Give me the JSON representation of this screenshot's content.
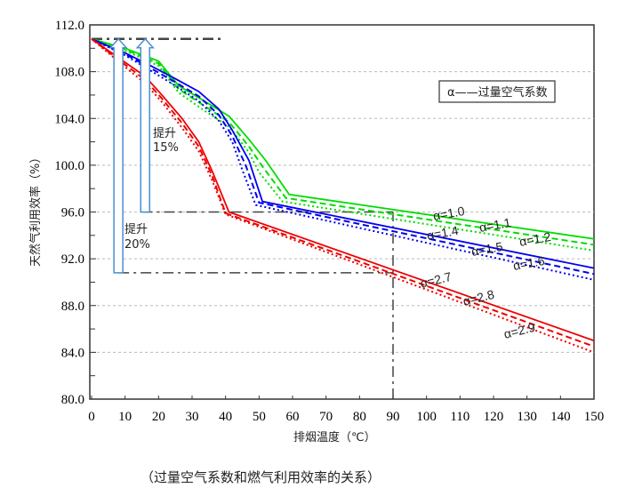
{
  "caption": "（过量空气系数和燃气利用效率的关系）",
  "chart_data": {
    "type": "line",
    "title": "",
    "xlabel": "排烟温度（℃）",
    "ylabel": "天然气利用效率（%）",
    "xlim": [
      0,
      150
    ],
    "ylim": [
      80,
      112
    ],
    "xticks": [
      "0",
      "10",
      "20",
      "30",
      "40",
      "50",
      "60",
      "70",
      "80",
      "90",
      "100",
      "110",
      "120",
      "130",
      "140",
      "150"
    ],
    "yticks": [
      "80.0",
      "84.0",
      "88.0",
      "92.0",
      "96.0",
      "100.0",
      "104.0",
      "108.0",
      "112.0"
    ],
    "grid": "horizontal dashed",
    "legend_box": "α——过量空气系数",
    "series": [
      {
        "name": "α=1.0",
        "color": "#00dd00",
        "style": "solid",
        "points": [
          [
            0,
            110.8
          ],
          [
            10,
            110.0
          ],
          [
            20,
            108.9
          ],
          [
            26,
            106.8
          ],
          [
            33,
            105.6
          ],
          [
            41,
            104.2
          ],
          [
            47,
            102.2
          ],
          [
            52,
            100.4
          ],
          [
            59,
            97.5
          ],
          [
            150,
            93.7
          ]
        ]
      },
      {
        "name": "α=1.1",
        "color": "#00dd00",
        "style": "dashed",
        "points": [
          [
            0,
            110.8
          ],
          [
            10,
            109.9
          ],
          [
            20,
            108.7
          ],
          [
            26,
            106.5
          ],
          [
            33,
            105.2
          ],
          [
            41,
            103.7
          ],
          [
            47,
            101.6
          ],
          [
            51,
            99.9
          ],
          [
            58,
            97.2
          ],
          [
            150,
            93.2
          ]
        ]
      },
      {
        "name": "α=1.2",
        "color": "#00dd00",
        "style": "dotted",
        "points": [
          [
            0,
            110.8
          ],
          [
            10,
            109.8
          ],
          [
            20,
            108.5
          ],
          [
            26,
            106.2
          ],
          [
            33,
            104.8
          ],
          [
            41,
            103.3
          ],
          [
            47,
            101.1
          ],
          [
            50,
            99.4
          ],
          [
            57,
            96.9
          ],
          [
            150,
            92.7
          ]
        ]
      },
      {
        "name": "α=1.4",
        "color": "#0000ee",
        "style": "solid",
        "points": [
          [
            0,
            110.8
          ],
          [
            10,
            109.6
          ],
          [
            17,
            108.6
          ],
          [
            25,
            107.4
          ],
          [
            32,
            106.3
          ],
          [
            38,
            104.8
          ],
          [
            42,
            103.0
          ],
          [
            47,
            100.4
          ],
          [
            51,
            96.9
          ],
          [
            150,
            91.2
          ]
        ]
      },
      {
        "name": "α=1.5",
        "color": "#0000ee",
        "style": "dashed",
        "points": [
          [
            0,
            110.8
          ],
          [
            10,
            109.5
          ],
          [
            17,
            108.4
          ],
          [
            25,
            107.1
          ],
          [
            32,
            105.9
          ],
          [
            38,
            104.3
          ],
          [
            42,
            102.5
          ],
          [
            46,
            100.0
          ],
          [
            50,
            96.8
          ],
          [
            150,
            90.7
          ]
        ]
      },
      {
        "name": "α=1.6",
        "color": "#0000ee",
        "style": "dotted",
        "points": [
          [
            0,
            110.8
          ],
          [
            10,
            109.4
          ],
          [
            17,
            108.2
          ],
          [
            25,
            106.8
          ],
          [
            32,
            105.5
          ],
          [
            38,
            103.8
          ],
          [
            42,
            102.0
          ],
          [
            45,
            99.6
          ],
          [
            49,
            96.6
          ],
          [
            150,
            90.2
          ]
        ]
      },
      {
        "name": "α=2.7",
        "color": "#ee0000",
        "style": "solid",
        "points": [
          [
            0,
            110.8
          ],
          [
            10,
            108.8
          ],
          [
            16,
            107.6
          ],
          [
            21,
            106.0
          ],
          [
            27,
            104.0
          ],
          [
            32,
            102.0
          ],
          [
            36,
            99.5
          ],
          [
            41,
            96.0
          ],
          [
            150,
            85.0
          ]
        ]
      },
      {
        "name": "α=2.8",
        "color": "#ee0000",
        "style": "dashed",
        "points": [
          [
            0,
            110.8
          ],
          [
            10,
            108.6
          ],
          [
            16,
            107.3
          ],
          [
            21,
            105.7
          ],
          [
            27,
            103.6
          ],
          [
            32,
            101.6
          ],
          [
            36,
            99.1
          ],
          [
            40,
            95.9
          ],
          [
            150,
            84.5
          ]
        ]
      },
      {
        "name": "α=2.9",
        "color": "#ee0000",
        "style": "dotted",
        "points": [
          [
            0,
            110.8
          ],
          [
            10,
            108.4
          ],
          [
            16,
            107.0
          ],
          [
            21,
            105.4
          ],
          [
            27,
            103.2
          ],
          [
            32,
            101.2
          ],
          [
            36,
            98.7
          ],
          [
            40,
            95.8
          ],
          [
            150,
            84.0
          ]
        ]
      }
    ],
    "annotations": [
      {
        "text": "提升\n20%",
        "line1": "提升",
        "line2": "20%",
        "arrow_from": [
          8,
          90.8
        ],
        "arrow_to": [
          8,
          110.8
        ]
      },
      {
        "text": "提升\n15%",
        "line1": "提升",
        "line2": "15%",
        "arrow_from": [
          16,
          96.0
        ],
        "arrow_to": [
          16,
          110.8
        ]
      }
    ],
    "reference_lines": [
      {
        "orientation": "horizontal",
        "y": 110.8,
        "x": [
          0,
          39
        ]
      },
      {
        "orientation": "horizontal",
        "y": 96.0,
        "x": [
          15,
          90
        ]
      },
      {
        "orientation": "horizontal",
        "y": 90.8,
        "x": [
          8,
          90
        ]
      },
      {
        "orientation": "vertical",
        "x": 90,
        "y": [
          80,
          96
        ]
      }
    ]
  }
}
